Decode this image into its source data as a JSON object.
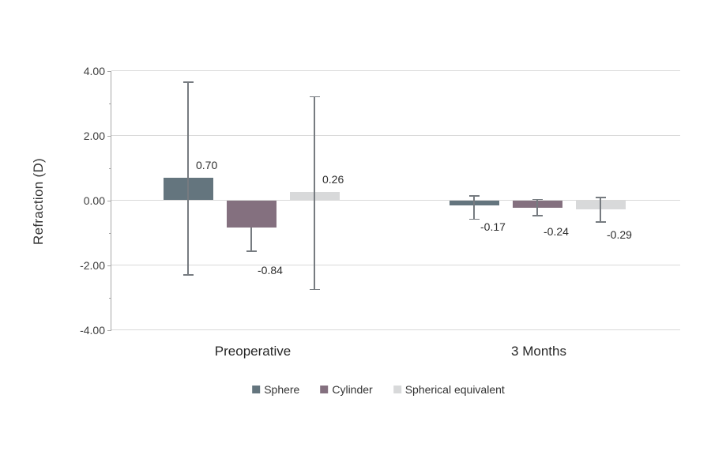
{
  "chart_data": {
    "type": "bar",
    "title": "",
    "ylabel": "Refraction (D)",
    "xlabel": "",
    "categories": [
      "Preoperative",
      "3 Months"
    ],
    "series": [
      {
        "name": "Sphere",
        "color": "#64757e",
        "values": [
          0.7,
          -0.17
        ],
        "labels": [
          "0.70",
          "-0.17"
        ],
        "err_hi": [
          3.65,
          0.13
        ],
        "err_lo": [
          -2.3,
          -0.58
        ]
      },
      {
        "name": "Cylinder",
        "color": "#84707f",
        "values": [
          -0.84,
          -0.24
        ],
        "labels": [
          "-0.84",
          "-0.24"
        ],
        "err_hi": [
          null,
          0.02
        ],
        "err_lo": [
          -1.57,
          -0.48
        ]
      },
      {
        "name": "Spherical equivalent",
        "color": "#d8d9da",
        "values": [
          0.26,
          -0.29
        ],
        "labels": [
          "0.26",
          "-0.29"
        ],
        "err_hi": [
          3.2,
          0.09
        ],
        "err_lo": [
          -2.75,
          -0.67
        ]
      }
    ],
    "ylim": [
      -4,
      4
    ],
    "yticks": [
      {
        "value": 4,
        "label": "4.00"
      },
      {
        "value": 2,
        "label": "2.00"
      },
      {
        "value": 0,
        "label": "0.00"
      },
      {
        "value": -2,
        "label": "-2.00"
      },
      {
        "value": -4,
        "label": "-4.00"
      }
    ],
    "minor_yticks": [
      3,
      1,
      -1,
      -3
    ],
    "grid": true,
    "legend_position": "bottom",
    "styles": {
      "gridline_color": "#d9d9d9",
      "axis_color": "#a6a6a6",
      "error_bar_color": "#767b80",
      "label_color": "#2e2e2e"
    }
  }
}
